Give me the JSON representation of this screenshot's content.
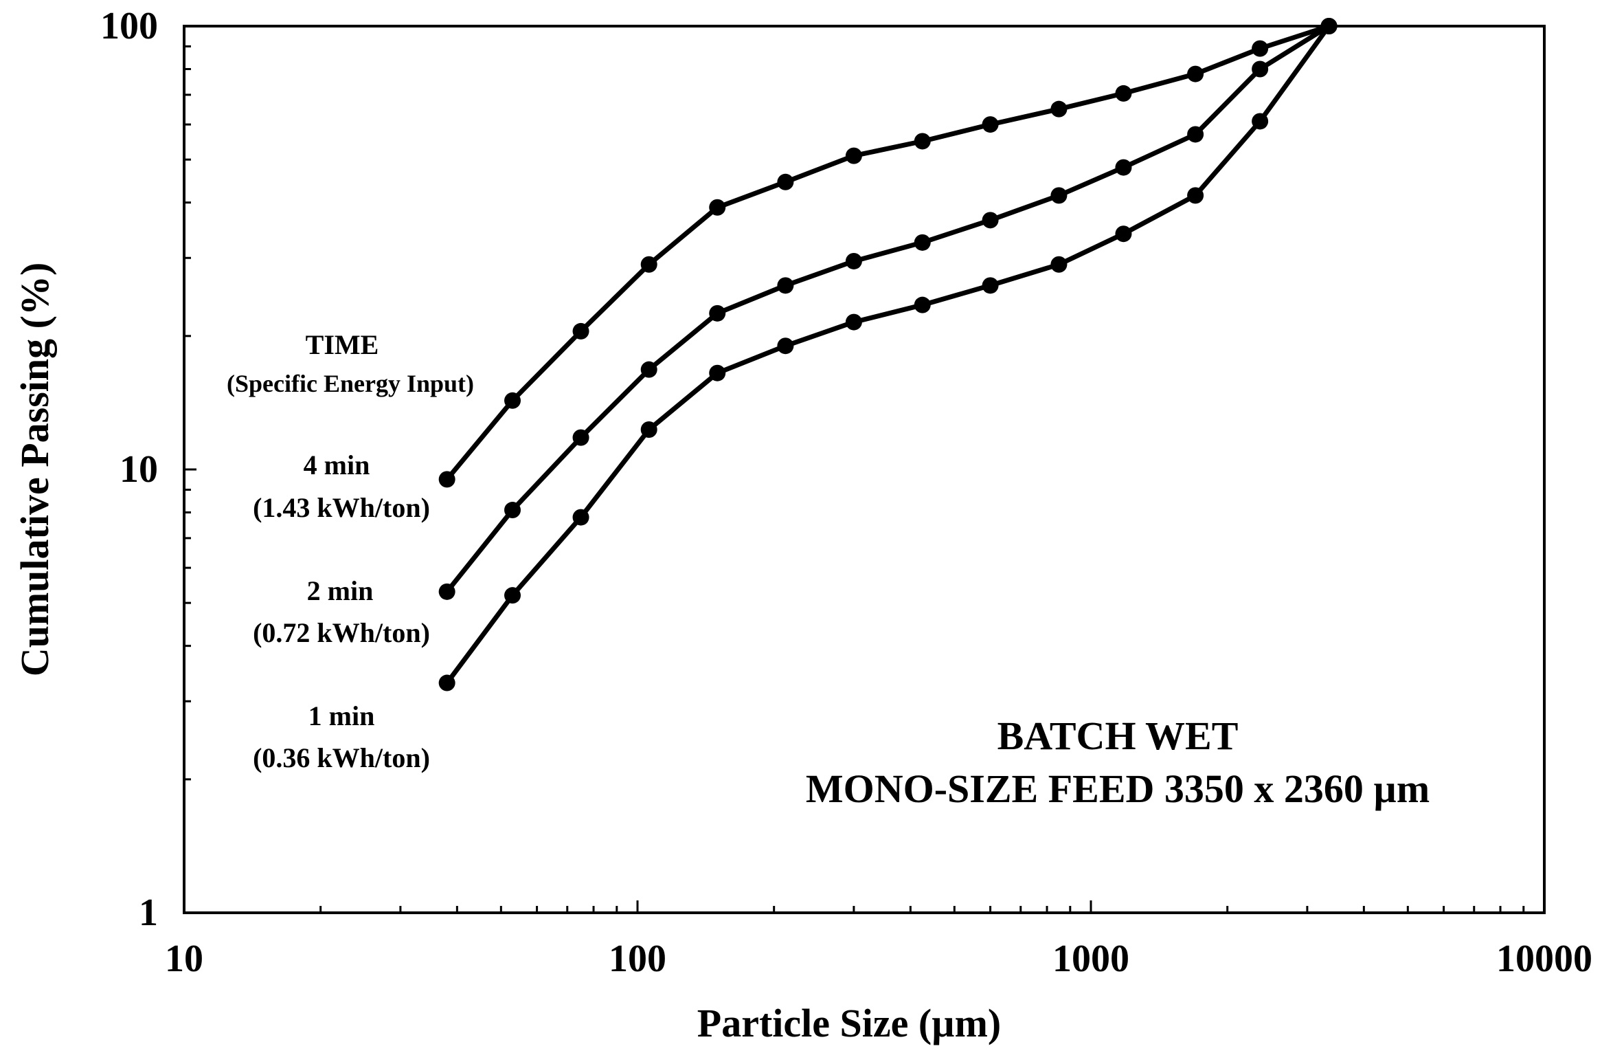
{
  "chart_data": {
    "type": "line",
    "xscale": "log",
    "yscale": "log",
    "xlabel": "Particle Size (µm)",
    "ylabel": "Cumulative Passing (%)",
    "xlim": [
      10,
      10000
    ],
    "ylim": [
      1,
      100
    ],
    "x_tick_labels": [
      "10",
      "100",
      "1000",
      "10000"
    ],
    "y_tick_labels": [
      "1",
      "10",
      "100"
    ],
    "x": [
      38,
      53,
      75,
      106,
      150,
      212,
      300,
      425,
      600,
      850,
      1180,
      1700,
      2360,
      3350
    ],
    "series": [
      {
        "name": "4 min",
        "values": [
          9.5,
          14.3,
          20.5,
          29,
          39,
          44.5,
          51,
          55,
          60,
          65,
          70.5,
          78,
          89,
          100
        ]
      },
      {
        "name": "2 min",
        "values": [
          5.3,
          8.1,
          11.8,
          16.8,
          22.5,
          26,
          29.5,
          32.5,
          36.5,
          41.5,
          48,
          57,
          80,
          100
        ]
      },
      {
        "name": "1 min",
        "values": [
          3.3,
          5.2,
          7.8,
          12.3,
          16.5,
          19,
          21.5,
          23.5,
          26,
          29,
          34,
          41.5,
          61,
          100
        ]
      }
    ],
    "legend": {
      "title": "TIME",
      "subtitle": "(Specific Energy Input)",
      "entries": [
        {
          "time": "4 min",
          "energy": "(1.43 kWh/ton)"
        },
        {
          "time": "2 min",
          "energy": "(0.72 kWh/ton)"
        },
        {
          "time": "1 min",
          "energy": "(0.36 kWh/ton)"
        }
      ]
    },
    "annotation": {
      "line1": "BATCH WET",
      "line2": "MONO-SIZE FEED 3350 x 2360 µm"
    },
    "grid": false
  }
}
